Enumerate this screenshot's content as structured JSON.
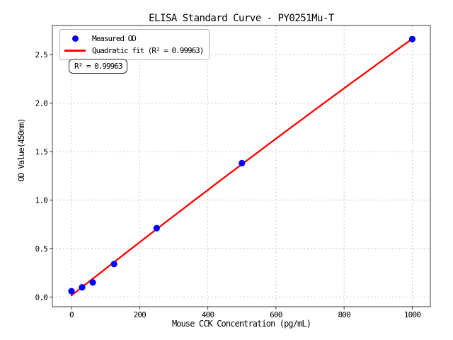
{
  "chart_data": {
    "type": "scatter",
    "title": "ELISA Standard Curve - PY0251Mu-T",
    "xlabel": "Mouse CCK Concentration (pg/mL)",
    "ylabel": "OD Value(450nm)",
    "xlim": [
      -56,
      1053
    ],
    "ylim": [
      -0.1,
      2.8
    ],
    "grid": true,
    "x_ticks": {
      "values": [
        0,
        200,
        400,
        600,
        800,
        1000
      ],
      "labels": [
        "0",
        "200",
        "400",
        "600",
        "800",
        "1000"
      ]
    },
    "y_ticks": {
      "values": [
        0.0,
        0.5,
        1.0,
        1.5,
        2.0,
        2.5
      ],
      "labels": [
        "0.0",
        "0.5",
        "1.0",
        "1.5",
        "2.0",
        "2.5"
      ]
    },
    "series": [
      {
        "name": "Measured OD",
        "type": "scatter",
        "color": "#0000ff",
        "x": [
          0,
          31.25,
          62.5,
          125,
          250,
          500,
          1000
        ],
        "y": [
          0.06,
          0.1,
          0.15,
          0.34,
          0.71,
          1.38,
          2.66
        ]
      },
      {
        "name": "Quadratic fit (R² = 0.99963)",
        "type": "line",
        "fit": "quadratic",
        "r_squared": 0.99963,
        "color": "#ff0000"
      }
    ],
    "legend": {
      "position": "upper-left",
      "items": [
        {
          "label": "Measured OD",
          "marker": "dot"
        },
        {
          "label": "Quadratic fit (R² = 0.99963)",
          "marker": "line"
        }
      ]
    },
    "annotation": "R² = 0.99963",
    "colors": {
      "points": "#0000ff",
      "fit_line": "#ff0000",
      "grid": "#c8c8c8",
      "spine": "#3c3c3c",
      "text": "#000000"
    }
  }
}
